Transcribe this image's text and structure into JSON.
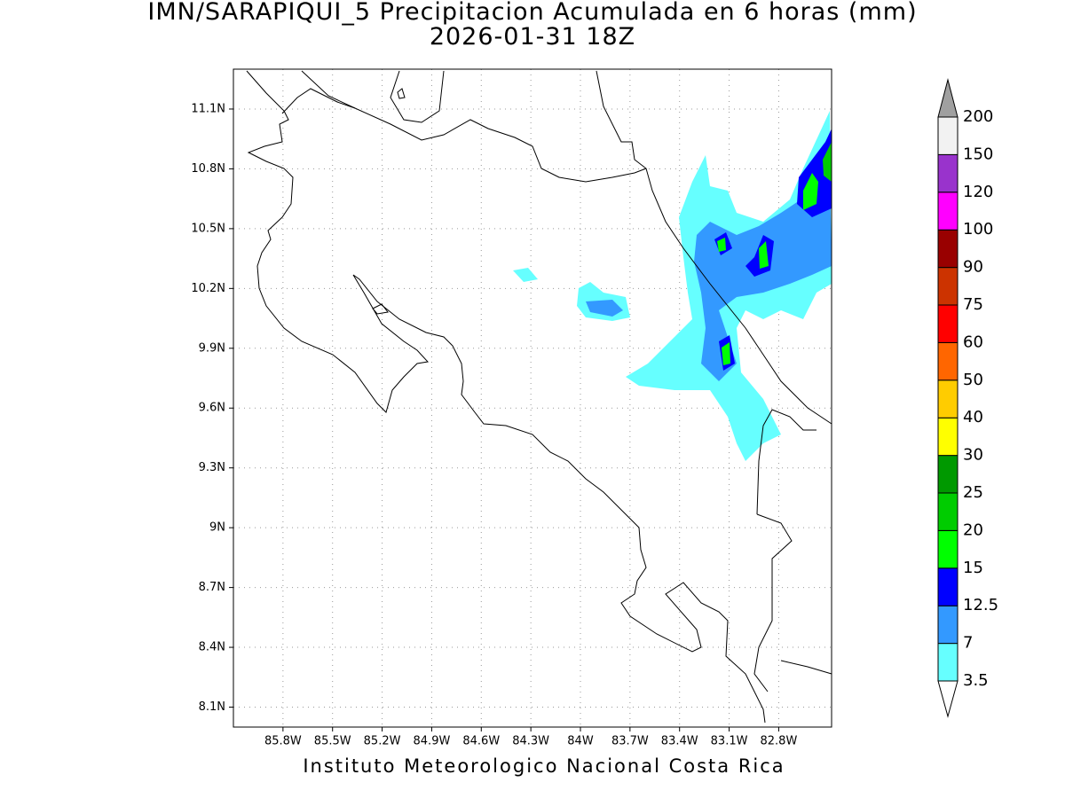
{
  "header": {
    "title": "IMN/SARAPIQUI_5 Precipitacion Acumulada en 6 horas (mm)",
    "subtitle": "2026-01-31 18Z"
  },
  "map": {
    "xlim": [
      -86.1,
      -82.48
    ],
    "ylim": [
      8.0,
      11.3
    ],
    "lon_ticks": [
      {
        "value": -85.8,
        "label": "85.8W"
      },
      {
        "value": -85.5,
        "label": "85.5W"
      },
      {
        "value": -85.2,
        "label": "85.2W"
      },
      {
        "value": -84.9,
        "label": "84.9W"
      },
      {
        "value": -84.6,
        "label": "84.6W"
      },
      {
        "value": -84.3,
        "label": "84.3W"
      },
      {
        "value": -84.0,
        "label": "84W"
      },
      {
        "value": -83.7,
        "label": "83.7W"
      },
      {
        "value": -83.4,
        "label": "83.4W"
      },
      {
        "value": -83.1,
        "label": "83.1W"
      },
      {
        "value": -82.8,
        "label": "82.8W"
      }
    ],
    "lat_ticks": [
      {
        "value": 11.1,
        "label": "11.1N"
      },
      {
        "value": 10.8,
        "label": "10.8N"
      },
      {
        "value": 10.5,
        "label": "10.5N"
      },
      {
        "value": 10.2,
        "label": "10.2N"
      },
      {
        "value": 9.9,
        "label": "9.9N"
      },
      {
        "value": 9.6,
        "label": "9.6N"
      },
      {
        "value": 9.3,
        "label": "9.3N"
      },
      {
        "value": 9.0,
        "label": "9N"
      },
      {
        "value": 8.7,
        "label": "8.7N"
      },
      {
        "value": 8.4,
        "label": "8.4N"
      },
      {
        "value": 8.1,
        "label": "8.1N"
      }
    ]
  },
  "colorbar": {
    "levels": [
      3.5,
      7,
      12.5,
      15,
      20,
      25,
      30,
      40,
      50,
      60,
      75,
      90,
      100,
      120,
      150,
      200
    ],
    "colors": [
      "#ffffff",
      "#66ffff",
      "#3399ff",
      "#0000ff",
      "#00ff00",
      "#00cc00",
      "#009900",
      "#ffff00",
      "#ffcc00",
      "#ff6600",
      "#ff0000",
      "#cc3300",
      "#990000",
      "#ff00ff",
      "#9933cc",
      "#f2f2f2",
      "#a0a0a0"
    ]
  },
  "footer": "Instituto Meteorologico Nacional Costa Rica"
}
